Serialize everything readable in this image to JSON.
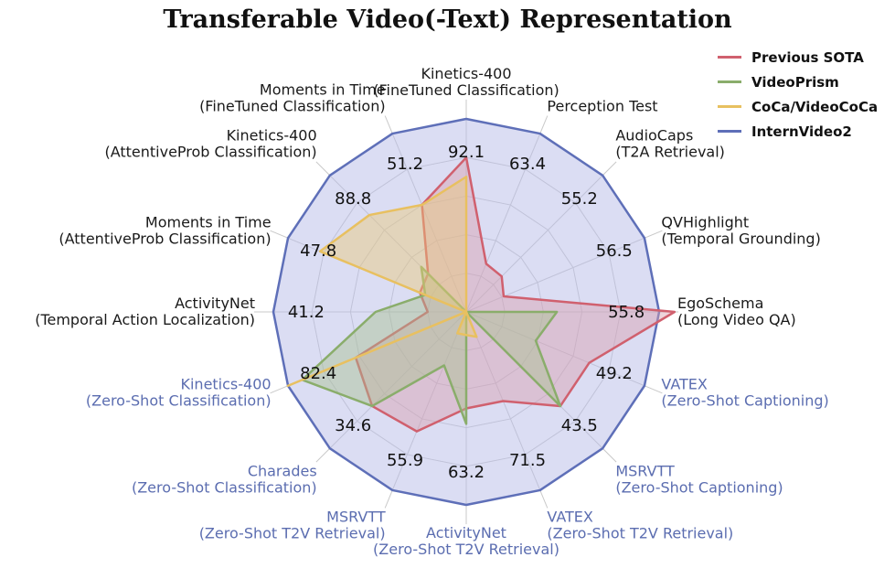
{
  "chart_data": {
    "type": "radar",
    "title": "Transferable Video(-Text) Representation",
    "legend_position": "top-right",
    "grid": true,
    "axes": [
      {
        "line1": "Kinetics-400",
        "line2": "(FineTuned Classification)",
        "group": "standard",
        "value_label": "92.1"
      },
      {
        "line1": "Perception Test",
        "line2": "",
        "group": "standard",
        "value_label": "63.4"
      },
      {
        "line1": "AudioCaps",
        "line2": "(T2A Retrieval)",
        "group": "standard",
        "value_label": "55.2"
      },
      {
        "line1": "QVHighlight",
        "line2": "(Temporal Grounding)",
        "group": "standard",
        "value_label": "56.5"
      },
      {
        "line1": "EgoSchema",
        "line2": "(Long Video QA)",
        "group": "standard",
        "value_label": "55.8"
      },
      {
        "line1": "VATEX",
        "line2": "(Zero-Shot Captioning)",
        "group": "zero-shot",
        "value_label": "49.2"
      },
      {
        "line1": "MSRVTT",
        "line2": "(Zero-Shot Captioning)",
        "group": "zero-shot",
        "value_label": "43.5"
      },
      {
        "line1": "VATEX",
        "line2": "(Zero-Shot T2V Retrieval)",
        "group": "zero-shot",
        "value_label": "71.5"
      },
      {
        "line1": "ActivityNet",
        "line2": "(Zero-Shot T2V Retrieval)",
        "group": "zero-shot",
        "value_label": "63.2"
      },
      {
        "line1": "MSRVTT",
        "line2": "(Zero-Shot T2V Retrieval)",
        "group": "zero-shot",
        "value_label": "55.9"
      },
      {
        "line1": "Charades",
        "line2": "(Zero-Shot Classification)",
        "group": "zero-shot",
        "value_label": "34.6"
      },
      {
        "line1": "Kinetics-400",
        "line2": "(Zero-Shot Classification)",
        "group": "zero-shot",
        "value_label": "82.4"
      },
      {
        "line1": "ActivityNet",
        "line2": "(Temporal Action Localization)",
        "group": "standard",
        "value_label": "41.2"
      },
      {
        "line1": "Moments in Time",
        "line2": "(AttentiveProb Classification)",
        "group": "standard",
        "value_label": "47.8"
      },
      {
        "line1": "Kinetics-400",
        "line2": "(AttentiveProb Classification)",
        "group": "standard",
        "value_label": "88.8"
      },
      {
        "line1": "Moments in Time",
        "line2": "(FineTuned Classification)",
        "group": "standard",
        "value_label": "51.2"
      }
    ],
    "series": [
      {
        "name": "Previous SOTA",
        "color": "#d0606e",
        "fill": "#d9a0b0",
        "fill_opacity": 0.45,
        "values": [
          0.8,
          0.27,
          0.26,
          0.21,
          1.08,
          0.69,
          0.69,
          0.5,
          0.5,
          0.67,
          0.69,
          0.62,
          0.2,
          0.26,
          0.28,
          0.6
        ]
      },
      {
        "name": "VideoPrism",
        "color": "#8aad6b",
        "fill": "#a8c090",
        "fill_opacity": 0.45,
        "values": [
          0,
          0,
          0,
          0,
          0.47,
          0.39,
          0.69,
          0,
          0.58,
          0.3,
          0.69,
          0.92,
          0.47,
          0.23,
          0.33,
          0
        ]
      },
      {
        "name": "CoCa/VideoCoCa",
        "color": "#e8c060",
        "fill": "#ecca78",
        "fill_opacity": 0.45,
        "values": [
          0.7,
          0,
          0,
          0,
          0,
          0,
          0,
          0.14,
          0.12,
          0.12,
          0,
          1.0,
          0,
          0.82,
          0.71,
          0.6
        ]
      },
      {
        "name": "InternVideo2",
        "color": "#5e6fb8",
        "fill": "#b8bce8",
        "fill_opacity": 0.5,
        "values": [
          1,
          1,
          1,
          1,
          1,
          1,
          1,
          1,
          1,
          1,
          1,
          1,
          1,
          1,
          1,
          1
        ]
      }
    ],
    "rlim": [
      0,
      1
    ]
  }
}
